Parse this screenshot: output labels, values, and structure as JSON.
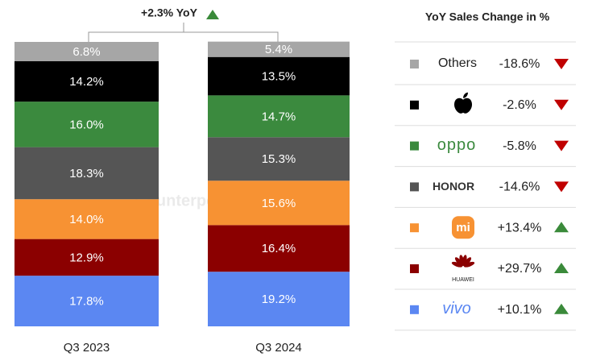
{
  "chart_data": {
    "type": "stacked-bar",
    "annotation": "+2.3% YoY",
    "watermark": "Counterpoint",
    "table_title": "YoY Sales Change in %",
    "categories": [
      "Q3 2023",
      "Q3 2024"
    ],
    "ylim": [
      0,
      100
    ],
    "series": [
      {
        "name": "Others",
        "color": "#a6a6a6",
        "values": [
          6.8,
          5.4
        ],
        "value_labels": [
          "6.8%",
          "5.4%"
        ],
        "yoy": -18.6,
        "yoy_label": "-18.6%"
      },
      {
        "color": "#000000",
        "values": [
          14.2,
          13.5
        ],
        "value_labels": [
          "14.2%",
          "13.5%"
        ],
        "yoy": -2.6,
        "yoy_label": "-2.6%"
      },
      {
        "name": "oppo",
        "color": "#3b8a3e",
        "values": [
          16.0,
          14.7
        ],
        "value_labels": [
          "16.0%",
          "14.7%"
        ],
        "yoy": -5.8,
        "yoy_label": "-5.8%"
      },
      {
        "name": "HONOR",
        "color": "#555555",
        "values": [
          18.3,
          15.3
        ],
        "value_labels": [
          "18.3%",
          "15.3%"
        ],
        "yoy": -14.6,
        "yoy_label": "-14.6%"
      },
      {
        "name": "mi",
        "color": "#f79233",
        "values": [
          14.0,
          15.6
        ],
        "value_labels": [
          "14.0%",
          "15.6%"
        ],
        "yoy": 13.4,
        "yoy_label": "+13.4%"
      },
      {
        "name": "HUAWEI",
        "color": "#8b0000",
        "values": [
          12.9,
          16.4
        ],
        "value_labels": [
          "12.9%",
          "16.4%"
        ],
        "yoy": 29.7,
        "yoy_label": "+29.7%"
      },
      {
        "name": "vivo",
        "color": "#5b87f2",
        "values": [
          17.8,
          19.2
        ],
        "value_labels": [
          "17.8%",
          "19.2%"
        ],
        "yoy": 10.1,
        "yoy_label": "+10.1%"
      }
    ]
  }
}
